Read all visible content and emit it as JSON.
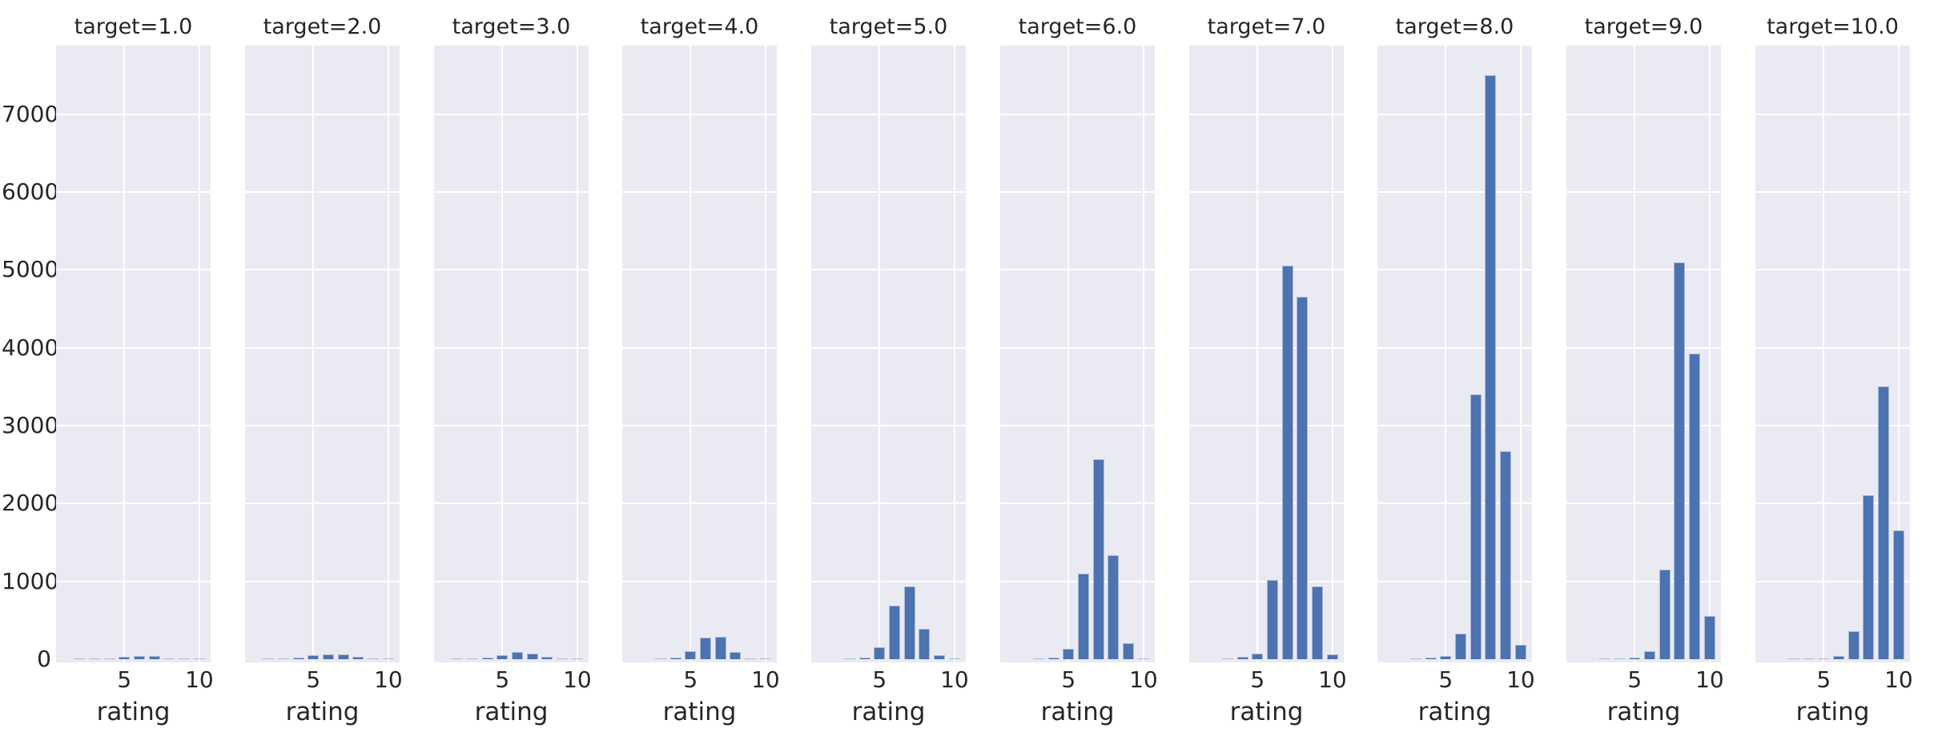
{
  "chart_data": {
    "type": "bar",
    "subtype": "faceted-histogram",
    "facet_row_variable": "target",
    "xlabel": "rating",
    "ylabel": "",
    "categories": [
      1,
      2,
      3,
      4,
      5,
      6,
      7,
      8,
      9,
      10
    ],
    "x_tick_labels": [
      "5",
      "10"
    ],
    "x_tick_values": [
      5,
      10
    ],
    "y_tick_labels": [
      "0",
      "1000",
      "2000",
      "3000",
      "4000",
      "5000",
      "6000",
      "7000"
    ],
    "y_tick_values": [
      0,
      1000,
      2000,
      3000,
      4000,
      5000,
      6000,
      7000
    ],
    "ylim": [
      0,
      7880
    ],
    "xlim": [
      0.45,
      10.75
    ],
    "grid": true,
    "legend_position": "none",
    "facets": [
      {
        "title": "target=1.0",
        "values": [
          0,
          5,
          10,
          15,
          30,
          45,
          45,
          10,
          5,
          8
        ]
      },
      {
        "title": "target=2.0",
        "values": [
          0,
          5,
          10,
          20,
          55,
          60,
          60,
          30,
          8,
          5
        ]
      },
      {
        "title": "target=3.0",
        "values": [
          0,
          5,
          10,
          20,
          50,
          95,
          75,
          30,
          8,
          5
        ]
      },
      {
        "title": "target=4.0",
        "values": [
          0,
          0,
          10,
          25,
          100,
          280,
          290,
          90,
          15,
          5
        ]
      },
      {
        "title": "target=5.0",
        "values": [
          0,
          0,
          15,
          25,
          155,
          690,
          940,
          390,
          50,
          10
        ]
      },
      {
        "title": "target=6.0",
        "values": [
          0,
          0,
          10,
          25,
          130,
          1100,
          2570,
          1340,
          205,
          15
        ]
      },
      {
        "title": "target=7.0",
        "values": [
          0,
          0,
          10,
          30,
          75,
          1020,
          5050,
          4650,
          930,
          60
        ]
      },
      {
        "title": "target=8.0",
        "values": [
          0,
          0,
          10,
          20,
          40,
          330,
          3400,
          7500,
          2670,
          180
        ]
      },
      {
        "title": "target=9.0",
        "values": [
          0,
          0,
          5,
          15,
          20,
          100,
          1150,
          5100,
          3930,
          560
        ]
      },
      {
        "title": "target=10.0",
        "values": [
          0,
          0,
          10,
          10,
          15,
          40,
          360,
          2110,
          3500,
          1650
        ]
      }
    ],
    "colors": {
      "bar_fill": "#4c72b0",
      "bar_edge": "#aabbd9",
      "axes_background": "#eaeaf2",
      "gridline": "#ffffff",
      "text": "#262626",
      "figure_background": "#ffffff"
    }
  }
}
